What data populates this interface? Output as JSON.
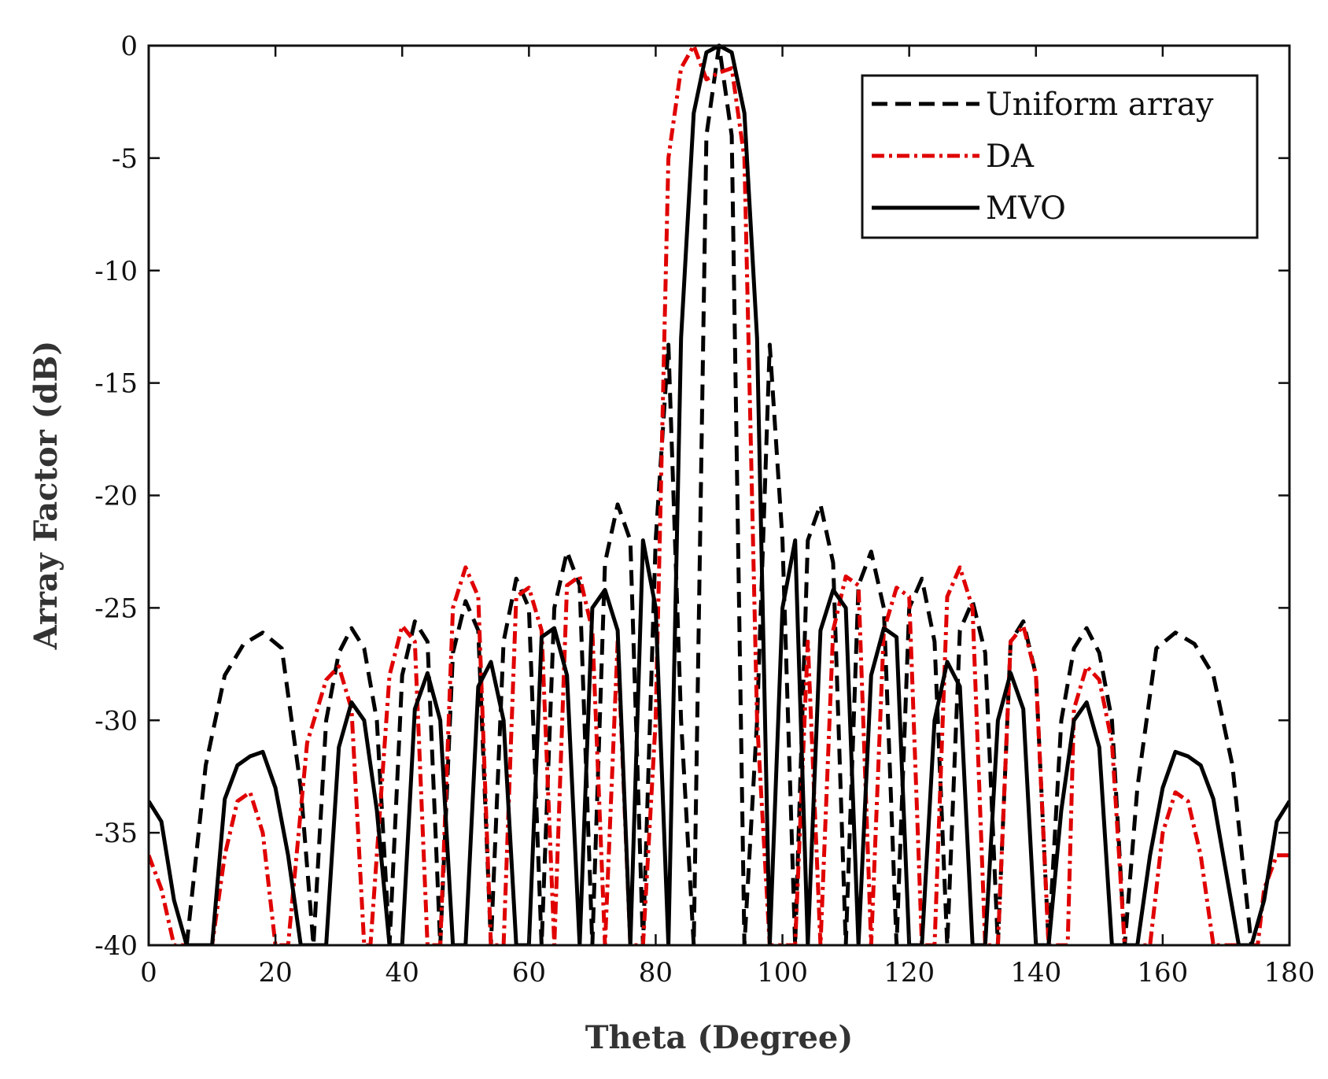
{
  "chart_data": {
    "type": "line",
    "title": "",
    "xlabel": "Theta (Degree)",
    "ylabel": "Array Factor (dB)",
    "xlim": [
      0,
      180
    ],
    "ylim": [
      -40,
      0
    ],
    "xticks": [
      0,
      20,
      40,
      60,
      80,
      100,
      120,
      140,
      160,
      180
    ],
    "yticks": [
      0,
      -5,
      -10,
      -15,
      -20,
      -25,
      -30,
      -35,
      -40
    ],
    "grid": false,
    "legend_position": "top-right",
    "series": [
      {
        "name": "Uniform array",
        "color": "#000000",
        "dash": "dashed",
        "x": [
          6,
          9,
          12,
          15,
          18,
          21,
          24,
          26,
          28,
          30,
          32,
          34,
          36,
          38,
          40,
          42,
          44,
          46,
          48,
          50,
          52,
          54,
          56,
          58,
          60,
          62,
          64,
          66,
          68,
          70,
          72,
          74,
          76,
          78,
          80,
          82,
          84,
          86,
          88,
          90,
          92,
          94,
          96,
          98,
          100,
          102,
          104,
          106,
          108,
          110,
          112,
          114,
          116,
          118,
          120,
          122,
          124,
          126,
          128,
          130,
          132,
          134,
          136,
          138,
          140,
          142,
          144,
          146,
          148,
          150,
          152,
          154,
          156,
          159,
          162,
          165,
          168,
          171,
          174
        ],
        "values": [
          -40,
          -32,
          -28,
          -26.6,
          -26.1,
          -26.8,
          -33,
          -40,
          -30,
          -27,
          -25.9,
          -26.8,
          -30,
          -40,
          -28,
          -25.6,
          -26.5,
          -40,
          -27,
          -24.7,
          -26,
          -40,
          -26.5,
          -23.7,
          -25,
          -40,
          -25,
          -22.5,
          -24,
          -40,
          -23,
          -20.4,
          -22,
          -40,
          -22,
          -13.3,
          -30,
          -40,
          -4,
          0,
          -4,
          -40,
          -30,
          -13.3,
          -22,
          -40,
          -22,
          -20.4,
          -23,
          -40,
          -24,
          -22.5,
          -25,
          -40,
          -25,
          -23.7,
          -26.5,
          -40,
          -26,
          -24.7,
          -27,
          -40,
          -26.5,
          -25.6,
          -28,
          -40,
          -30,
          -26.8,
          -25.9,
          -27,
          -30,
          -40,
          -33,
          -26.8,
          -26.1,
          -26.6,
          -28,
          -32,
          -40
        ]
      },
      {
        "name": "DA",
        "color": "#e00000",
        "dash": "dash-dot",
        "x": [
          0,
          2,
          4,
          5,
          10,
          12,
          14,
          16,
          18,
          20,
          22,
          25,
          28,
          30,
          32,
          34,
          35,
          38,
          40,
          42,
          44,
          46,
          48,
          50,
          52,
          54,
          56,
          58,
          60,
          62,
          64,
          66,
          68,
          70,
          72,
          74,
          76,
          78,
          80,
          82,
          84,
          86,
          88,
          90,
          92,
          94,
          96,
          98,
          100,
          102,
          104,
          106,
          108,
          110,
          112,
          114,
          116,
          118,
          120,
          122,
          124,
          126,
          128,
          130,
          132,
          134,
          136,
          138,
          140,
          142,
          144,
          145,
          146,
          148,
          150,
          152,
          154,
          156,
          158,
          160,
          162,
          164,
          166,
          168,
          170,
          175,
          176,
          178,
          180
        ],
        "values": [
          -36,
          -37.5,
          -40,
          -40,
          -40,
          -36,
          -33.6,
          -33.2,
          -35,
          -40,
          -40,
          -31,
          -28.2,
          -27.6,
          -29.5,
          -40,
          -40,
          -28,
          -25.8,
          -26.5,
          -40,
          -40,
          -25,
          -23.2,
          -24.5,
          -40,
          -40,
          -24.5,
          -24.1,
          -26,
          -40,
          -24,
          -23.6,
          -26,
          -40,
          -26.5,
          -40,
          -40,
          -30,
          -5,
          -1,
          0,
          -1.5,
          -1.2,
          -1,
          -5,
          -30,
          -40,
          -40,
          -40,
          -26.5,
          -40,
          -26,
          -23.6,
          -24,
          -40,
          -26,
          -24.1,
          -24.5,
          -40,
          -40,
          -24.5,
          -23.2,
          -25,
          -40,
          -40,
          -26.5,
          -25.8,
          -28,
          -40,
          -40,
          -40,
          -29.5,
          -27.6,
          -28.2,
          -31,
          -40,
          -40,
          -40,
          -35,
          -33.2,
          -33.6,
          -36,
          -40,
          -40,
          -40,
          -37.5,
          -36,
          -36
        ]
      },
      {
        "name": "MVO",
        "color": "#000000",
        "dash": "solid",
        "x": [
          0,
          2,
          4,
          6,
          10,
          12,
          14,
          16,
          18,
          20,
          22,
          24,
          28,
          30,
          32,
          34,
          36,
          38,
          40,
          42,
          44,
          46,
          48,
          50,
          52,
          54,
          56,
          58,
          60,
          62,
          64,
          66,
          68,
          70,
          72,
          74,
          76,
          78,
          80,
          82,
          84,
          86,
          88,
          90,
          92,
          94,
          96,
          98,
          100,
          102,
          104,
          106,
          108,
          110,
          112,
          114,
          116,
          118,
          120,
          122,
          124,
          126,
          128,
          130,
          132,
          134,
          136,
          138,
          140,
          142,
          144,
          146,
          148,
          150,
          152,
          156,
          158,
          160,
          162,
          164,
          166,
          168,
          172,
          174,
          176,
          178,
          180
        ],
        "values": [
          -33.6,
          -34.5,
          -38,
          -40,
          -40,
          -33.5,
          -32,
          -31.6,
          -31.4,
          -33,
          -36,
          -40,
          -40,
          -31.2,
          -29.2,
          -30,
          -34,
          -40,
          -40,
          -29.5,
          -27.9,
          -30,
          -40,
          -40,
          -28.5,
          -27.4,
          -30,
          -40,
          -40,
          -26.3,
          -25.9,
          -28,
          -40,
          -25,
          -24.2,
          -26,
          -40,
          -22,
          -25,
          -40,
          -13,
          -3,
          -0.3,
          0,
          -0.3,
          -3,
          -13,
          -40,
          -25,
          -22,
          -40,
          -26,
          -24.2,
          -25,
          -40,
          -28,
          -25.9,
          -26.3,
          -40,
          -40,
          -30,
          -27.4,
          -28.5,
          -40,
          -40,
          -30,
          -27.9,
          -29.5,
          -40,
          -40,
          -34,
          -30,
          -29.2,
          -31.2,
          -40,
          -40,
          -36,
          -33,
          -31.4,
          -31.6,
          -32,
          -33.5,
          -40,
          -40,
          -38,
          -34.5,
          -33.6
        ]
      }
    ]
  }
}
